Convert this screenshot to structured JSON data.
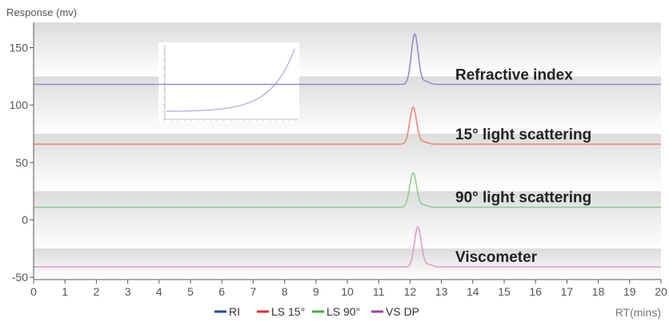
{
  "chart_data": {
    "type": "line",
    "ylabel": "Response (mv)",
    "xlabel": "RT(mins)",
    "xlim": [
      0,
      20
    ],
    "ylim": [
      -52,
      172
    ],
    "xticks": [
      0,
      1,
      2,
      3,
      4,
      5,
      6,
      7,
      8,
      9,
      10,
      11,
      12,
      13,
      14,
      15,
      16,
      17,
      18,
      19,
      20
    ],
    "yticks": [
      -50,
      0,
      50,
      100,
      150
    ],
    "grid": "horizontal bands",
    "legend_position": "bottom-center",
    "series": [
      {
        "name": "RI",
        "color": "#1f4e9c",
        "line_color": "#8f8fd0",
        "baseline": 118,
        "peak_x": 12.15,
        "peak_y": 162,
        "annotation": "Refractive index"
      },
      {
        "name": "LS 15°",
        "color": "#e03030",
        "line_color": "#f08a70",
        "baseline": 66,
        "peak_x": 12.1,
        "peak_y": 98,
        "annotation": "15° light scattering"
      },
      {
        "name": "LS 90°",
        "color": "#3cb03c",
        "line_color": "#8ed08e",
        "baseline": 11,
        "peak_x": 12.1,
        "peak_y": 41,
        "annotation": "90° light scattering"
      },
      {
        "name": "VS DP",
        "color": "#a040a0",
        "line_color": "#e09ad0",
        "baseline": -41,
        "peak_x": 12.25,
        "peak_y": -6,
        "annotation": "Viscometer"
      }
    ],
    "inset": {
      "description_shape": "exponential curve",
      "has_axes": true
    }
  }
}
